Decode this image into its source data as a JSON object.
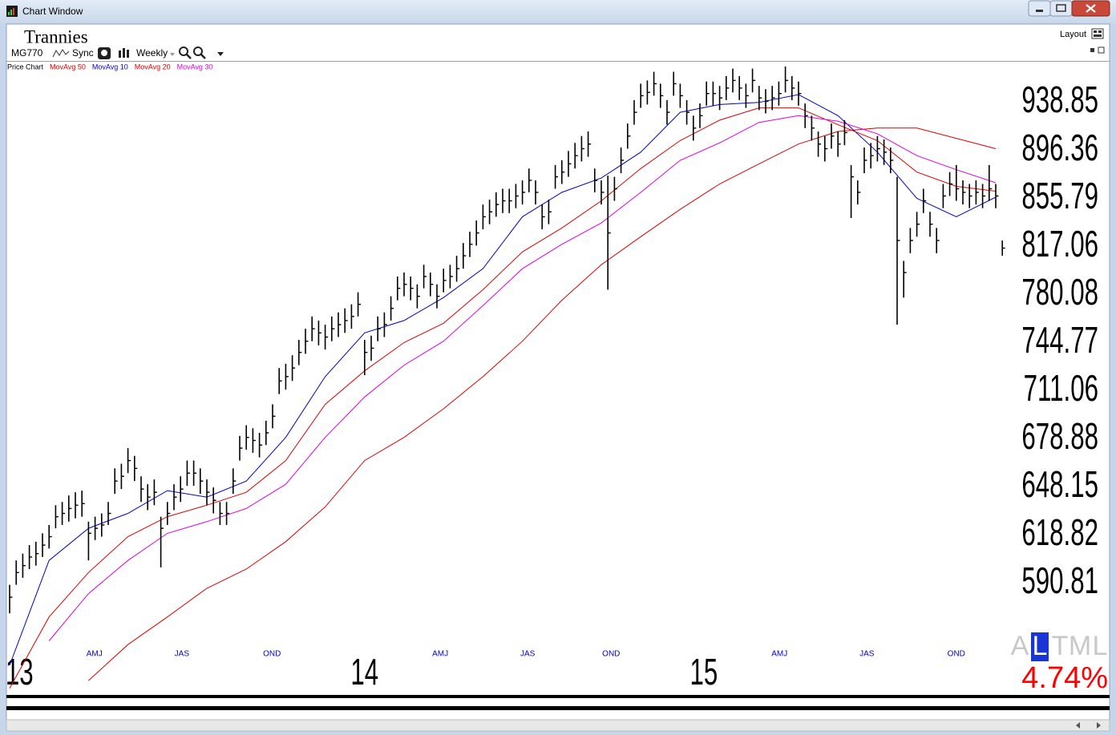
{
  "window": {
    "title": "Chart Window",
    "layout": "Layout"
  },
  "toolbar": {
    "symbol": "MG770",
    "sync": "Sync",
    "period": "Weekly"
  },
  "chart_data": {
    "type": "ohlc",
    "title": "Trannies",
    "price": {
      "name": "Price Chart",
      "color": "#000000",
      "high": [
        590,
        604,
        608,
        613,
        615,
        620,
        625,
        637,
        639,
        643,
        645,
        646,
        627,
        630,
        632,
        639,
        660,
        663,
        673,
        668,
        655,
        650,
        653,
        630,
        639,
        650,
        655,
        665,
        665,
        660,
        653,
        648,
        639,
        639,
        660,
        681,
        688,
        686,
        683,
        691,
        702,
        727,
        730,
        736,
        747,
        755,
        764,
        761,
        758,
        764,
        767,
        770,
        773,
        782,
        747,
        750,
        764,
        767,
        779,
        794,
        797,
        794,
        788,
        803,
        797,
        788,
        800,
        803,
        810,
        820,
        829,
        838,
        851,
        855,
        861,
        864,
        864,
        868,
        871,
        881,
        871,
        851,
        855,
        884,
        888,
        896,
        903,
        909,
        913,
        881,
        871,
        875,
        874,
        899,
        920,
        941,
        956,
        959,
        967,
        956,
        941,
        967,
        956,
        941,
        927,
        938,
        958,
        958,
        954,
        963,
        970,
        963,
        956,
        970,
        954,
        951,
        954,
        958,
        972,
        963,
        958,
        938,
        927,
        913,
        909,
        920,
        913,
        923,
        884,
        871,
        899,
        903,
        909,
        906,
        899,
        874,
        806,
        832,
        845,
        864,
        845,
        832,
        868,
        878,
        884,
        871,
        868,
        871,
        868,
        884,
        868,
        822
      ],
      "low": [
        574,
        590,
        594,
        599,
        601,
        606,
        611,
        623,
        625,
        627,
        629,
        630,
        604,
        616,
        618,
        625,
        644,
        647,
        657,
        652,
        639,
        634,
        637,
        600,
        625,
        634,
        639,
        649,
        649,
        644,
        637,
        632,
        625,
        625,
        644,
        665,
        672,
        670,
        667,
        675,
        686,
        709,
        712,
        718,
        729,
        737,
        746,
        743,
        740,
        746,
        749,
        752,
        755,
        764,
        722,
        732,
        746,
        749,
        761,
        776,
        779,
        776,
        770,
        785,
        779,
        770,
        782,
        785,
        790,
        800,
        809,
        818,
        831,
        835,
        841,
        844,
        844,
        848,
        851,
        861,
        851,
        831,
        835,
        864,
        868,
        874,
        881,
        887,
        891,
        861,
        851,
        784,
        854,
        877,
        898,
        919,
        934,
        937,
        945,
        934,
        919,
        945,
        934,
        919,
        905,
        916,
        936,
        936,
        932,
        941,
        948,
        941,
        934,
        948,
        932,
        929,
        932,
        936,
        948,
        941,
        936,
        916,
        905,
        891,
        887,
        898,
        891,
        901,
        840,
        851,
        877,
        881,
        887,
        884,
        877,
        758,
        778,
        812,
        825,
        844,
        825,
        812,
        848,
        858,
        854,
        851,
        848,
        851,
        848,
        854,
        848,
        810
      ],
      "close": [
        583,
        597,
        601,
        606,
        608,
        613,
        618,
        630,
        632,
        635,
        637,
        638,
        620,
        623,
        625,
        632,
        652,
        655,
        665,
        660,
        647,
        642,
        645,
        623,
        632,
        642,
        647,
        657,
        657,
        652,
        645,
        640,
        632,
        632,
        652,
        673,
        680,
        678,
        675,
        683,
        694,
        718,
        721,
        727,
        738,
        746,
        755,
        752,
        749,
        755,
        758,
        761,
        764,
        773,
        738,
        741,
        755,
        758,
        770,
        785,
        788,
        785,
        779,
        794,
        788,
        779,
        791,
        794,
        800,
        810,
        819,
        828,
        841,
        845,
        851,
        854,
        854,
        858,
        861,
        871,
        861,
        841,
        845,
        874,
        878,
        885,
        892,
        898,
        902,
        871,
        861,
        828,
        864,
        888,
        909,
        930,
        945,
        948,
        956,
        945,
        930,
        956,
        945,
        930,
        916,
        927,
        947,
        947,
        943,
        952,
        959,
        952,
        945,
        959,
        943,
        940,
        943,
        947,
        959,
        952,
        947,
        927,
        916,
        902,
        898,
        909,
        902,
        912,
        874,
        861,
        888,
        892,
        898,
        895,
        888,
        822,
        797,
        822,
        835,
        854,
        835,
        822,
        858,
        868,
        864,
        861,
        858,
        861,
        858,
        864,
        858,
        816
      ]
    },
    "series": [
      {
        "name": "MovAvg 50",
        "color": "#e00000",
        "x": [
          0,
          6,
          12,
          18,
          24,
          30,
          36,
          42,
          48,
          54,
          60,
          66,
          72,
          78,
          84,
          90,
          96,
          102,
          108,
          114,
          120,
          126,
          132,
          138,
          144,
          150
        ],
        "values": [
          null,
          null,
          538,
          557,
          572,
          588,
          599,
          615,
          636,
          665,
          680,
          699,
          721,
          746,
          776,
          803,
          825,
          847,
          868,
          885,
          902,
          913,
          916,
          916,
          907,
          898
        ]
      },
      {
        "name": "MovAvg 10",
        "color": "#0000cc",
        "x": [
          0,
          6,
          12,
          18,
          24,
          30,
          36,
          42,
          48,
          54,
          60,
          66,
          72,
          78,
          84,
          90,
          96,
          102,
          108,
          114,
          120,
          126,
          132,
          138,
          144,
          150
        ],
        "values": [
          546,
          604,
          623,
          632,
          646,
          642,
          652,
          680,
          721,
          752,
          761,
          778,
          800,
          841,
          861,
          873,
          895,
          930,
          937,
          939,
          946,
          927,
          895,
          856,
          841,
          857
        ]
      },
      {
        "name": "MovAvg 20",
        "color": "#e00000",
        "x": [
          0,
          6,
          12,
          18,
          24,
          30,
          36,
          42,
          48,
          54,
          60,
          66,
          72,
          78,
          84,
          90,
          96,
          102,
          108,
          114,
          120,
          126,
          132,
          138,
          144,
          150
        ],
        "values": [
          534,
          572,
          597,
          618,
          630,
          637,
          645,
          665,
          702,
          725,
          745,
          759,
          784,
          813,
          832,
          854,
          881,
          905,
          923,
          934,
          934,
          919,
          905,
          878,
          866,
          862
        ]
      },
      {
        "name": "MovAvg 30",
        "color": "#e000e0",
        "x": [
          0,
          6,
          12,
          18,
          24,
          30,
          36,
          42,
          48,
          54,
          60,
          66,
          72,
          78,
          84,
          90,
          96,
          102,
          108,
          114,
          120,
          126,
          132,
          138,
          144,
          150
        ],
        "values": [
          null,
          559,
          585,
          604,
          620,
          627,
          635,
          650,
          680,
          707,
          729,
          746,
          772,
          800,
          819,
          836,
          861,
          888,
          903,
          921,
          927,
          922,
          911,
          892,
          880,
          869
        ]
      }
    ],
    "ylim": [
      533.5,
      975.7
    ],
    "log_scale": true,
    "yticks": [
      938.85,
      896.36,
      855.79,
      817.06,
      780.08,
      744.77,
      711.06,
      678.88,
      648.15,
      618.82,
      590.81
    ],
    "xticks": [
      {
        "value": 12.9,
        "label": "AMJ"
      },
      {
        "value": 26.2,
        "label": "JAS"
      },
      {
        "value": 39.9,
        "label": "OND"
      },
      {
        "value": 65.5,
        "label": "AMJ"
      },
      {
        "value": 78.8,
        "label": "JAS"
      },
      {
        "value": 91.5,
        "label": "OND"
      },
      {
        "value": 117.1,
        "label": "AMJ"
      },
      {
        "value": 130.4,
        "label": "JAS"
      },
      {
        "value": 144.0,
        "label": "OND"
      }
    ],
    "xtick_color": "#0000cc",
    "year_ticks": [
      {
        "value": 1.5,
        "label": "13"
      },
      {
        "value": 54.0,
        "label": "14"
      },
      {
        "value": 105.6,
        "label": "15"
      }
    ],
    "scale_modes": [
      "A",
      "L",
      "T",
      "M",
      "L"
    ],
    "scale_mode_selected": 1,
    "scale_step": "4.74%"
  }
}
